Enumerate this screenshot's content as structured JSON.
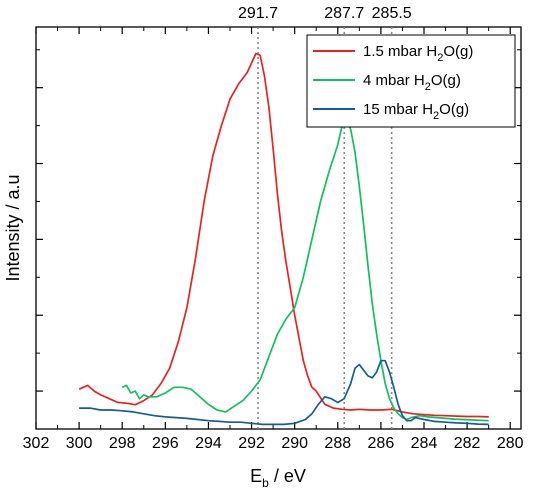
{
  "chart_data": {
    "type": "line",
    "xlabel": {
      "main": "E",
      "sub": "b",
      "rest": " / eV"
    },
    "ylabel": "Intensity / a.u",
    "xlim": [
      302,
      279.5
    ],
    "xticks": [
      302,
      300,
      298,
      296,
      294,
      292,
      290,
      288,
      286,
      284,
      282,
      280
    ],
    "ylim": [
      0,
      1.06
    ],
    "y_tick_labels_shown": false,
    "y_major_ticks": [
      0.1,
      0.3,
      0.5,
      0.7,
      0.9
    ],
    "y_minor_ticks": [
      0.0,
      0.2,
      0.4,
      0.6,
      0.8,
      1.0
    ],
    "reference_lines": [
      {
        "x": 291.7,
        "label": "291.7"
      },
      {
        "x": 287.7,
        "label": "287.7"
      },
      {
        "x": 285.5,
        "label": "285.5"
      }
    ],
    "legend_position": "top-right",
    "series": [
      {
        "name": {
          "main": "1.5 mbar H",
          "sub": "2",
          "rest": "O(g)"
        },
        "color": "#e8231e",
        "x": [
          300.0,
          299.6,
          299.3,
          299.0,
          298.6,
          298.2,
          297.8,
          297.4,
          297.0,
          296.6,
          296.2,
          295.8,
          295.4,
          295.0,
          294.6,
          294.2,
          293.8,
          293.4,
          293.0,
          292.6,
          292.2,
          291.8,
          291.6,
          291.4,
          291.2,
          291.0,
          290.8,
          290.6,
          290.4,
          290.2,
          290.0,
          289.8,
          289.6,
          289.4,
          289.2,
          289.0,
          288.6,
          288.2,
          287.8,
          287.4,
          287.0,
          286.5,
          286.0,
          285.5,
          285.0,
          284.5,
          284.0,
          283.5,
          283.0,
          282.5,
          282.0,
          281.5,
          281.0
        ],
        "y": [
          0.105,
          0.115,
          0.1,
          0.09,
          0.08,
          0.07,
          0.068,
          0.064,
          0.075,
          0.09,
          0.12,
          0.16,
          0.23,
          0.32,
          0.45,
          0.6,
          0.72,
          0.8,
          0.87,
          0.91,
          0.94,
          0.99,
          0.985,
          0.93,
          0.85,
          0.74,
          0.62,
          0.52,
          0.44,
          0.37,
          0.3,
          0.24,
          0.18,
          0.14,
          0.11,
          0.1,
          0.065,
          0.055,
          0.052,
          0.05,
          0.052,
          0.05,
          0.05,
          0.052,
          0.045,
          0.04,
          0.038,
          0.036,
          0.035,
          0.034,
          0.033,
          0.033,
          0.032
        ]
      },
      {
        "name": {
          "main": "4 mbar H",
          "sub": "2",
          "rest": "O(g)"
        },
        "color": "#10c060",
        "x": [
          298.0,
          297.8,
          297.6,
          297.4,
          297.2,
          297.0,
          296.8,
          296.4,
          296.0,
          295.6,
          295.2,
          294.8,
          294.4,
          294.0,
          293.6,
          293.2,
          292.8,
          292.4,
          292.0,
          291.6,
          291.2,
          290.8,
          290.4,
          290.0,
          289.6,
          289.2,
          288.8,
          288.4,
          288.0,
          287.8,
          287.6,
          287.4,
          287.2,
          287.0,
          286.8,
          286.6,
          286.4,
          286.2,
          286.0,
          285.8,
          285.6,
          285.4,
          285.2,
          285.0,
          284.8,
          284.6,
          284.2,
          283.8,
          283.4,
          283.0,
          282.6,
          282.2,
          281.8,
          281.4,
          281.0
        ],
        "y": [
          0.11,
          0.115,
          0.095,
          0.1,
          0.08,
          0.09,
          0.085,
          0.085,
          0.095,
          0.11,
          0.11,
          0.105,
          0.085,
          0.065,
          0.05,
          0.045,
          0.06,
          0.075,
          0.1,
          0.13,
          0.19,
          0.25,
          0.29,
          0.32,
          0.4,
          0.5,
          0.6,
          0.68,
          0.75,
          0.8,
          0.82,
          0.79,
          0.73,
          0.64,
          0.54,
          0.43,
          0.33,
          0.25,
          0.18,
          0.12,
          0.08,
          0.055,
          0.04,
          0.03,
          0.025,
          0.03,
          0.035,
          0.032,
          0.03,
          0.028,
          0.026,
          0.025,
          0.024,
          0.023,
          0.022
        ]
      },
      {
        "name": {
          "main": "15 mbar H",
          "sub": "2",
          "rest": "O(g)"
        },
        "color": "#135e96",
        "x": [
          300.0,
          299.5,
          299.0,
          298.5,
          298.0,
          297.5,
          297.0,
          296.5,
          296.0,
          295.5,
          295.0,
          294.5,
          294.0,
          293.5,
          293.0,
          292.5,
          292.0,
          291.5,
          291.0,
          290.5,
          290.0,
          289.5,
          289.2,
          288.9,
          288.6,
          288.3,
          288.0,
          287.7,
          287.4,
          287.2,
          287.0,
          286.8,
          286.6,
          286.4,
          286.2,
          286.0,
          285.8,
          285.6,
          285.4,
          285.2,
          285.0,
          284.8,
          284.6,
          284.4,
          284.0,
          283.5,
          283.0,
          282.5,
          282.0,
          281.5,
          281.0
        ],
        "y": [
          0.055,
          0.055,
          0.05,
          0.05,
          0.048,
          0.045,
          0.04,
          0.035,
          0.032,
          0.03,
          0.028,
          0.025,
          0.022,
          0.02,
          0.018,
          0.018,
          0.015,
          0.012,
          0.012,
          0.012,
          0.015,
          0.025,
          0.04,
          0.065,
          0.085,
          0.08,
          0.07,
          0.08,
          0.12,
          0.16,
          0.17,
          0.155,
          0.14,
          0.135,
          0.15,
          0.18,
          0.18,
          0.15,
          0.11,
          0.065,
          0.035,
          0.022,
          0.022,
          0.03,
          0.025,
          0.02,
          0.018,
          0.016,
          0.015,
          0.013,
          0.012
        ]
      }
    ]
  }
}
